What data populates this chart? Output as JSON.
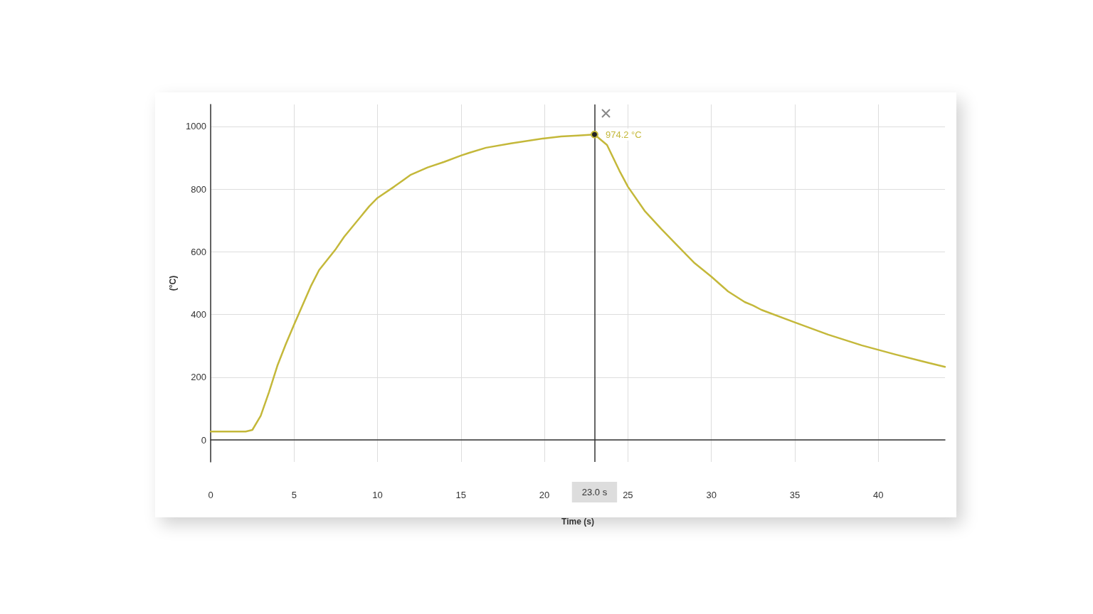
{
  "chart_data": {
    "type": "line",
    "xlabel": "Time (s)",
    "ylabel": "(°C)",
    "x": [
      0,
      2.1,
      2.5,
      3.0,
      3.5,
      4.0,
      4.5,
      5.0,
      6.0,
      6.5,
      7.5,
      8.0,
      9.5,
      10,
      11,
      12,
      13,
      14,
      15,
      15.5,
      16.5,
      18,
      20,
      21,
      22,
      23,
      23.75,
      24.5,
      25,
      26,
      27,
      28,
      29,
      30,
      31,
      32,
      32.5,
      33,
      35,
      37,
      39,
      41,
      43,
      44
    ],
    "series": [
      {
        "color": "#c4b83a",
        "values": [
          27,
          27,
          32,
          77,
          153,
          237,
          305,
          368,
          490,
          542,
          609,
          648,
          745,
          772,
          808,
          846,
          869,
          887,
          907,
          916,
          932,
          946,
          962,
          968,
          971,
          974.2,
          941,
          858,
          808,
          731,
          673,
          618,
          564,
          521,
          474,
          440,
          429,
          415,
          375,
          336,
          302,
          273,
          246,
          233
        ]
      }
    ],
    "xlim": [
      0,
      44
    ],
    "xticks": [
      0,
      5,
      10,
      15,
      20,
      25,
      30,
      35,
      40
    ],
    "ylim": [
      -70,
      1070
    ],
    "yticks": [
      0,
      200,
      400,
      600,
      800,
      1000
    ],
    "grid": true,
    "marker": "none",
    "line_style": "solid",
    "ref_lines": [
      {
        "axis": "x",
        "value": 23,
        "label": "23.0 s",
        "color": "#333333"
      }
    ],
    "annotations": [
      {
        "text": "974.2 °C",
        "x": 23,
        "y": 974.2
      }
    ]
  }
}
